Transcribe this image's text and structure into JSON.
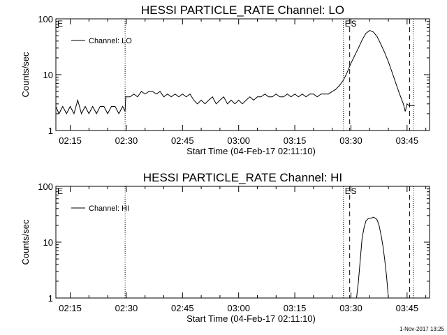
{
  "footer": {
    "timestamp": "1-Nov-2017 13:25"
  },
  "chart_data": [
    {
      "type": "line",
      "title": "HESSI PARTICLE_RATE Channel: LO",
      "xlabel": "Start Time (04-Feb-17 02:11:10)",
      "ylabel": "Counts/sec",
      "yscale": "log",
      "ylim": [
        1,
        100
      ],
      "xlim": [
        "02:11:10",
        "03:51:00"
      ],
      "xticks": [
        "02:15",
        "02:30",
        "02:45",
        "03:00",
        "03:15",
        "03:30",
        "03:45"
      ],
      "yticks": [
        "1",
        "10",
        "100"
      ],
      "legend": {
        "label": "Channel: LO",
        "position": "top-left"
      },
      "markers": [
        {
          "label": "E",
          "time": "02:11:10",
          "style": "none"
        },
        {
          "label": "",
          "time": "02:29:40",
          "style": "dotted"
        },
        {
          "label": "E",
          "time": "03:28:00",
          "style": "dotted"
        },
        {
          "label": "S",
          "time": "03:29:40",
          "style": "dashed"
        },
        {
          "label": "",
          "time": "03:45:40",
          "style": "dashed"
        },
        {
          "label": "",
          "time": "03:46:40",
          "style": "dotted"
        }
      ],
      "series": [
        {
          "name": "Channel: LO",
          "points": [
            [
              "02:11:10",
              2.7
            ],
            [
              "02:12:00",
              2.0
            ],
            [
              "02:13:00",
              2.7
            ],
            [
              "02:14:00",
              2.0
            ],
            [
              "02:15:00",
              2.7
            ],
            [
              "02:16:00",
              2.0
            ],
            [
              "02:17:00",
              3.5
            ],
            [
              "02:18:00",
              2.0
            ],
            [
              "02:19:00",
              2.7
            ],
            [
              "02:20:00",
              2.0
            ],
            [
              "02:21:00",
              2.7
            ],
            [
              "02:22:00",
              2.0
            ],
            [
              "02:23:00",
              2.7
            ],
            [
              "02:24:00",
              2.7
            ],
            [
              "02:25:00",
              2.0
            ],
            [
              "02:26:00",
              2.7
            ],
            [
              "02:27:00",
              2.7
            ],
            [
              "02:28:00",
              2.0
            ],
            [
              "02:29:00",
              2.7
            ],
            [
              "02:29:40",
              2.2
            ],
            [
              "02:29:50",
              4.0
            ],
            [
              "02:31:00",
              4.0
            ],
            [
              "02:32:00",
              4.5
            ],
            [
              "02:33:00",
              4.0
            ],
            [
              "02:34:00",
              5.0
            ],
            [
              "02:35:00",
              4.5
            ],
            [
              "02:36:00",
              5.0
            ],
            [
              "02:37:00",
              5.0
            ],
            [
              "02:38:00",
              4.5
            ],
            [
              "02:39:00",
              5.0
            ],
            [
              "02:40:00",
              4.0
            ],
            [
              "02:41:00",
              4.5
            ],
            [
              "02:42:00",
              4.0
            ],
            [
              "02:43:00",
              4.5
            ],
            [
              "02:44:00",
              4.0
            ],
            [
              "02:45:00",
              4.5
            ],
            [
              "02:46:00",
              4.0
            ],
            [
              "02:47:00",
              4.5
            ],
            [
              "02:48:00",
              3.5
            ],
            [
              "02:49:00",
              3.0
            ],
            [
              "02:50:00",
              3.5
            ],
            [
              "02:51:00",
              3.0
            ],
            [
              "02:52:00",
              3.5
            ],
            [
              "02:53:00",
              4.0
            ],
            [
              "02:54:00",
              3.0
            ],
            [
              "02:55:00",
              3.5
            ],
            [
              "02:56:00",
              4.0
            ],
            [
              "02:57:00",
              3.0
            ],
            [
              "02:58:00",
              3.5
            ],
            [
              "02:59:00",
              3.0
            ],
            [
              "03:00:00",
              3.5
            ],
            [
              "03:01:00",
              3.0
            ],
            [
              "03:02:00",
              3.5
            ],
            [
              "03:03:00",
              4.0
            ],
            [
              "03:04:00",
              3.5
            ],
            [
              "03:05:00",
              4.0
            ],
            [
              "03:06:00",
              4.0
            ],
            [
              "03:07:00",
              4.5
            ],
            [
              "03:08:00",
              4.0
            ],
            [
              "03:09:00",
              4.0
            ],
            [
              "03:10:00",
              4.5
            ],
            [
              "03:11:00",
              4.0
            ],
            [
              "03:12:00",
              4.0
            ],
            [
              "03:13:00",
              4.5
            ],
            [
              "03:14:00",
              4.0
            ],
            [
              "03:15:00",
              4.5
            ],
            [
              "03:16:00",
              4.0
            ],
            [
              "03:17:00",
              4.5
            ],
            [
              "03:18:00",
              4.0
            ],
            [
              "03:19:00",
              4.5
            ],
            [
              "03:20:00",
              4.5
            ],
            [
              "03:21:00",
              4.0
            ],
            [
              "03:22:00",
              4.5
            ],
            [
              "03:23:00",
              4.5
            ],
            [
              "03:24:00",
              4.5
            ],
            [
              "03:25:00",
              5.0
            ],
            [
              "03:26:00",
              5.5
            ],
            [
              "03:27:00",
              6.5
            ],
            [
              "03:28:00",
              8.0
            ],
            [
              "03:29:00",
              11
            ],
            [
              "03:30:00",
              16
            ],
            [
              "03:31:00",
              22
            ],
            [
              "03:32:00",
              30
            ],
            [
              "03:33:00",
              42
            ],
            [
              "03:34:00",
              55
            ],
            [
              "03:35:00",
              62
            ],
            [
              "03:36:00",
              58
            ],
            [
              "03:37:00",
              48
            ],
            [
              "03:38:00",
              35
            ],
            [
              "03:39:00",
              25
            ],
            [
              "03:40:00",
              17
            ],
            [
              "03:41:00",
              11
            ],
            [
              "03:42:00",
              7
            ],
            [
              "03:43:00",
              4.5
            ],
            [
              "03:44:00",
              3.0
            ],
            [
              "03:44:30",
              2.2
            ],
            [
              "03:45:00",
              3.0
            ],
            [
              "03:45:30",
              2.8
            ],
            [
              "03:47:00",
              2.8
            ]
          ]
        }
      ]
    },
    {
      "type": "line",
      "title": "HESSI PARTICLE_RATE Channel: HI",
      "xlabel": "Start Time (04-Feb-17 02:11:10)",
      "ylabel": "Counts/sec",
      "yscale": "log",
      "ylim": [
        1,
        100
      ],
      "xlim": [
        "02:11:10",
        "03:51:00"
      ],
      "xticks": [
        "02:15",
        "02:30",
        "02:45",
        "03:00",
        "03:15",
        "03:30",
        "03:45"
      ],
      "yticks": [
        "1",
        "10",
        "100"
      ],
      "legend": {
        "label": "Channel: HI",
        "position": "top-left"
      },
      "markers": [
        {
          "label": "E",
          "time": "02:11:10",
          "style": "none"
        },
        {
          "label": "",
          "time": "02:29:40",
          "style": "dotted"
        },
        {
          "label": "E",
          "time": "03:28:00",
          "style": "dotted"
        },
        {
          "label": "S",
          "time": "03:29:40",
          "style": "dashed"
        },
        {
          "label": "",
          "time": "03:45:40",
          "style": "dashed"
        },
        {
          "label": "",
          "time": "03:46:40",
          "style": "dotted"
        }
      ],
      "series": [
        {
          "name": "Channel: HI",
          "points": [
            [
              "03:31:30",
              1.0
            ],
            [
              "03:32:00",
              2.0
            ],
            [
              "03:32:30",
              5.0
            ],
            [
              "03:33:00",
              12
            ],
            [
              "03:33:30",
              18
            ],
            [
              "03:34:00",
              24
            ],
            [
              "03:34:30",
              26
            ],
            [
              "03:35:00",
              27
            ],
            [
              "03:35:30",
              27
            ],
            [
              "03:36:00",
              28
            ],
            [
              "03:36:30",
              27
            ],
            [
              "03:37:00",
              25
            ],
            [
              "03:37:30",
              20
            ],
            [
              "03:38:00",
              14
            ],
            [
              "03:38:30",
              9
            ],
            [
              "03:39:00",
              5.0
            ],
            [
              "03:39:30",
              2.5
            ],
            [
              "03:40:00",
              1.0
            ]
          ]
        }
      ]
    }
  ]
}
